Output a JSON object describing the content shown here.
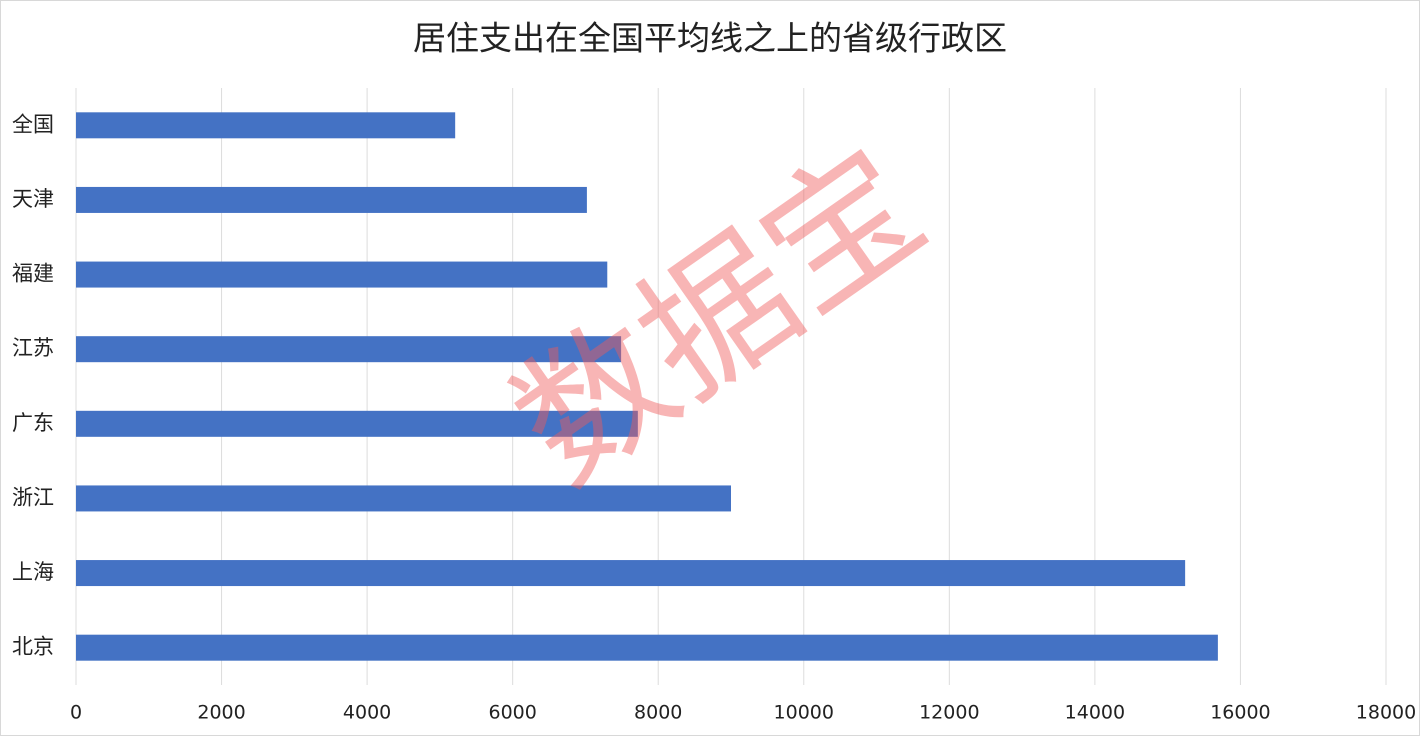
{
  "chart_data": {
    "type": "bar",
    "orientation": "horizontal",
    "title": "居住支出在全国平均线之上的省级行政区",
    "categories": [
      "全国",
      "天津",
      "福建",
      "江苏",
      "广东",
      "浙江",
      "上海",
      "北京"
    ],
    "values": [
      5210,
      7020,
      7300,
      7490,
      7720,
      9000,
      15240,
      15690
    ],
    "color": "#4472c4",
    "xlim": [
      0,
      18000
    ],
    "xticks": [
      0,
      2000,
      4000,
      6000,
      8000,
      10000,
      12000,
      14000,
      16000,
      18000
    ],
    "grid": true,
    "watermark": "数据宝"
  }
}
